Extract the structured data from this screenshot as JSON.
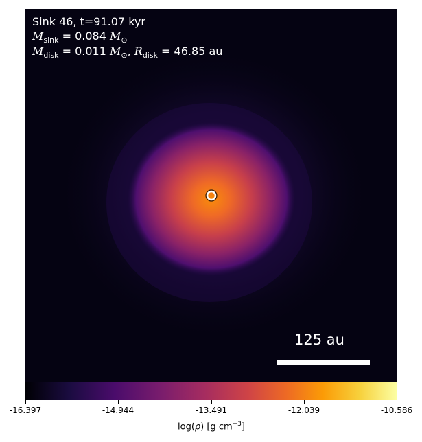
{
  "title": {
    "sink_label": "Sink 46, t=91.07 kyr",
    "m_sink_sym": "M",
    "m_sink_sub": "sink",
    "m_sink_value": " = 0.084 ",
    "m_unit": "M",
    "m_unit_sub": "⊙",
    "m_disk_sym": "M",
    "m_disk_sub": "disk",
    "m_disk_value": " = 0.011 ",
    "r_disk_sym": "R",
    "r_disk_sub": "disk",
    "r_disk_value": " = 46.85 au"
  },
  "scale_bar": {
    "label": "125 au"
  },
  "colorbar": {
    "ticks": [
      "-16.397",
      "-14.944",
      "-13.491",
      "-12.039",
      "-10.586"
    ],
    "label_prefix": "log(",
    "label_rho": "ρ",
    "label_mid": ") [g cm",
    "label_exp": "−3",
    "label_suffix": "]",
    "colormap": "inferno"
  },
  "colors": {
    "background": "#050312",
    "sink_marker": "#ffffff",
    "disk_core": "#f06a26"
  }
}
